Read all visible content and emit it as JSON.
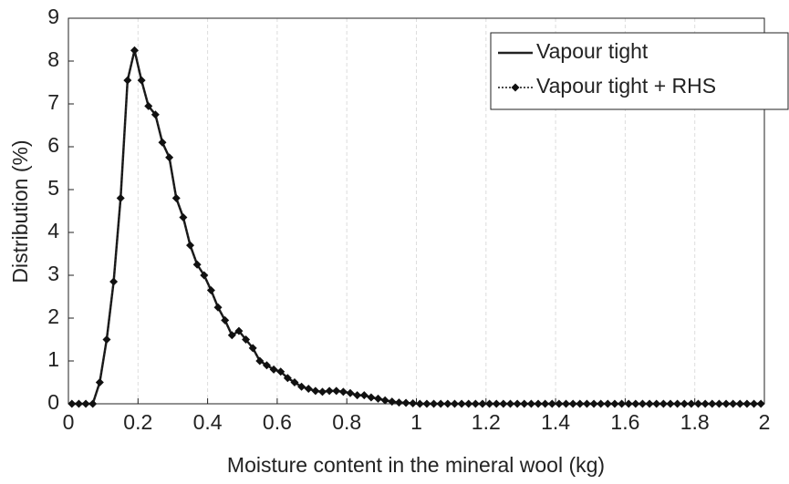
{
  "chart_data": {
    "type": "line",
    "xlabel": "Moisture content in the mineral wool (kg)",
    "ylabel": "Distribution (%)",
    "x": [
      0.01,
      0.03,
      0.05,
      0.07,
      0.09,
      0.11,
      0.13,
      0.15,
      0.17,
      0.19,
      0.21,
      0.23,
      0.25,
      0.27,
      0.29,
      0.31,
      0.33,
      0.35,
      0.37,
      0.39,
      0.41,
      0.43,
      0.45,
      0.47,
      0.49,
      0.51,
      0.53,
      0.55,
      0.57,
      0.59,
      0.61,
      0.63,
      0.65,
      0.67,
      0.69,
      0.71,
      0.73,
      0.75,
      0.77,
      0.79,
      0.81,
      0.83,
      0.85,
      0.87,
      0.89,
      0.91,
      0.93,
      0.95,
      0.97,
      0.99,
      1.01,
      1.03,
      1.05,
      1.07,
      1.09,
      1.11,
      1.13,
      1.15,
      1.17,
      1.19,
      1.21,
      1.23,
      1.25,
      1.27,
      1.29,
      1.31,
      1.33,
      1.35,
      1.37,
      1.39,
      1.41,
      1.43,
      1.45,
      1.47,
      1.49,
      1.51,
      1.53,
      1.55,
      1.57,
      1.59,
      1.61,
      1.63,
      1.65,
      1.67,
      1.69,
      1.71,
      1.73,
      1.75,
      1.77,
      1.79,
      1.81,
      1.83,
      1.85,
      1.87,
      1.89,
      1.91,
      1.93,
      1.95,
      1.97,
      1.99
    ],
    "series": [
      {
        "name": "Vapour tight",
        "color": "#222222",
        "style": "solid",
        "marker": "none",
        "values": [
          0,
          0,
          0,
          0,
          0.5,
          1.5,
          2.85,
          4.8,
          7.55,
          8.25,
          7.55,
          6.95,
          6.75,
          6.1,
          5.75,
          4.8,
          4.35,
          3.7,
          3.25,
          3.0,
          2.65,
          2.25,
          1.95,
          1.6,
          1.7,
          1.5,
          1.3,
          1.0,
          0.9,
          0.8,
          0.75,
          0.6,
          0.5,
          0.4,
          0.35,
          0.3,
          0.28,
          0.3,
          0.3,
          0.28,
          0.25,
          0.2,
          0.2,
          0.15,
          0.12,
          0.08,
          0.05,
          0.03,
          0.02,
          0.01,
          0,
          0,
          0,
          0,
          0,
          0,
          0,
          0,
          0,
          0,
          0,
          0,
          0,
          0,
          0,
          0,
          0,
          0,
          0,
          0,
          0,
          0,
          0,
          0,
          0,
          0,
          0,
          0,
          0,
          0,
          0,
          0,
          0,
          0,
          0,
          0,
          0,
          0,
          0,
          0,
          0,
          0,
          0,
          0,
          0,
          0,
          0,
          0,
          0,
          0
        ]
      },
      {
        "name": "Vapour tight + RHS",
        "color": "#111111",
        "style": "dotted",
        "marker": "diamond",
        "values": [
          0,
          0,
          0,
          0,
          0.5,
          1.5,
          2.85,
          4.8,
          7.55,
          8.25,
          7.55,
          6.95,
          6.75,
          6.1,
          5.75,
          4.8,
          4.35,
          3.7,
          3.25,
          3.0,
          2.65,
          2.25,
          1.95,
          1.6,
          1.7,
          1.5,
          1.3,
          1.0,
          0.9,
          0.8,
          0.75,
          0.6,
          0.5,
          0.4,
          0.35,
          0.3,
          0.28,
          0.3,
          0.3,
          0.28,
          0.25,
          0.2,
          0.2,
          0.15,
          0.12,
          0.08,
          0.05,
          0.03,
          0.02,
          0.01,
          0,
          0,
          0,
          0,
          0,
          0,
          0,
          0,
          0,
          0,
          0,
          0,
          0,
          0,
          0,
          0,
          0,
          0,
          0,
          0,
          0,
          0,
          0,
          0,
          0,
          0,
          0,
          0,
          0,
          0,
          0,
          0,
          0,
          0,
          0,
          0,
          0,
          0,
          0,
          0,
          0,
          0,
          0,
          0,
          0,
          0,
          0,
          0,
          0,
          0
        ]
      }
    ],
    "xlim": [
      0,
      2
    ],
    "xticks": [
      0,
      0.2,
      0.4,
      0.6,
      0.8,
      1,
      1.2,
      1.4,
      1.6,
      1.8,
      2
    ],
    "ylim": [
      0,
      9
    ],
    "yticks": [
      0,
      1,
      2,
      3,
      4,
      5,
      6,
      7,
      8,
      9
    ],
    "grid": "x",
    "legend": "upper right"
  }
}
